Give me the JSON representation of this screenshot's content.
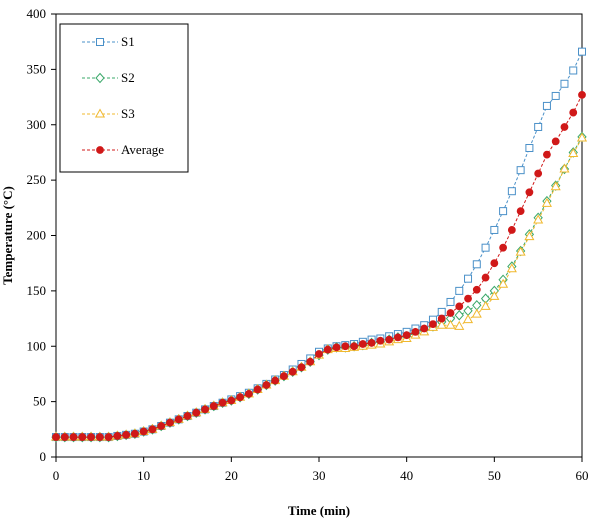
{
  "chart_data": {
    "type": "line",
    "xlabel": "Time (min)",
    "ylabel": "Temperature  (°C)",
    "xlim": [
      0,
      60
    ],
    "ylim": [
      0,
      400
    ],
    "xticks": [
      0,
      10,
      20,
      30,
      40,
      50,
      60
    ],
    "yticks": [
      0,
      50,
      100,
      150,
      200,
      250,
      300,
      350,
      400
    ],
    "grid": false,
    "legend_position": "top-left",
    "series": [
      {
        "name": "S1",
        "color": "#4a90c8",
        "marker": "square",
        "x": [
          0,
          1,
          2,
          3,
          4,
          5,
          6,
          7,
          8,
          9,
          10,
          11,
          12,
          13,
          14,
          15,
          16,
          17,
          18,
          19,
          20,
          21,
          22,
          23,
          24,
          25,
          26,
          27,
          28,
          29,
          30,
          31,
          32,
          33,
          34,
          35,
          36,
          37,
          38,
          39,
          40,
          41,
          42,
          43,
          44,
          45,
          46,
          47,
          48,
          49,
          50,
          51,
          52,
          53,
          54,
          55,
          56,
          57,
          58,
          59,
          60
        ],
        "y": [
          18,
          18,
          18,
          18,
          18,
          18,
          18,
          19,
          20,
          21,
          23,
          25,
          28,
          31,
          34,
          37,
          40,
          43,
          46,
          49,
          52,
          55,
          58,
          62,
          66,
          70,
          74,
          79,
          84,
          89,
          95,
          98,
          100,
          101,
          102,
          104,
          106,
          107,
          109,
          111,
          113,
          116,
          119,
          124,
          131,
          140,
          150,
          161,
          174,
          189,
          205,
          222,
          240,
          259,
          279,
          298,
          317,
          326,
          337,
          349,
          366
        ]
      },
      {
        "name": "S2",
        "color": "#3aa86a",
        "marker": "diamond",
        "x": [
          0,
          1,
          2,
          3,
          4,
          5,
          6,
          7,
          8,
          9,
          10,
          11,
          12,
          13,
          14,
          15,
          16,
          17,
          18,
          19,
          20,
          21,
          22,
          23,
          24,
          25,
          26,
          27,
          28,
          29,
          30,
          31,
          32,
          33,
          34,
          35,
          36,
          37,
          38,
          39,
          40,
          41,
          42,
          43,
          44,
          45,
          46,
          47,
          48,
          49,
          50,
          51,
          52,
          53,
          54,
          55,
          56,
          57,
          58,
          59,
          60
        ],
        "y": [
          18,
          18,
          18,
          18,
          18,
          18,
          18,
          19,
          20,
          21,
          23,
          25,
          28,
          31,
          34,
          37,
          40,
          43,
          46,
          49,
          51,
          54,
          57,
          61,
          65,
          69,
          73,
          77,
          81,
          86,
          92,
          97,
          99,
          99,
          100,
          101,
          103,
          104,
          106,
          108,
          109,
          112,
          115,
          118,
          122,
          125,
          128,
          132,
          137,
          143,
          150,
          160,
          172,
          186,
          201,
          216,
          231,
          245,
          260,
          275,
          289
        ]
      },
      {
        "name": "S3",
        "color": "#f0b82e",
        "marker": "triangle",
        "x": [
          0,
          1,
          2,
          3,
          4,
          5,
          6,
          7,
          8,
          9,
          10,
          11,
          12,
          13,
          14,
          15,
          16,
          17,
          18,
          19,
          20,
          21,
          22,
          23,
          24,
          25,
          26,
          27,
          28,
          29,
          30,
          31,
          32,
          33,
          34,
          35,
          36,
          37,
          38,
          39,
          40,
          41,
          42,
          43,
          44,
          45,
          46,
          47,
          48,
          49,
          50,
          51,
          52,
          53,
          54,
          55,
          56,
          57,
          58,
          59,
          60
        ],
        "y": [
          18,
          18,
          18,
          18,
          18,
          18,
          18,
          19,
          20,
          21,
          23,
          25,
          28,
          31,
          34,
          37,
          40,
          43,
          46,
          49,
          51,
          54,
          57,
          61,
          65,
          69,
          73,
          77,
          81,
          86,
          92,
          97,
          98,
          98,
          99,
          100,
          101,
          102,
          104,
          106,
          107,
          110,
          113,
          117,
          119,
          119,
          118,
          124,
          129,
          136,
          145,
          156,
          170,
          185,
          199,
          214,
          229,
          244,
          260,
          274,
          288
        ]
      },
      {
        "name": "Average",
        "color": "#d01818",
        "marker": "circle",
        "x": [
          0,
          1,
          2,
          3,
          4,
          5,
          6,
          7,
          8,
          9,
          10,
          11,
          12,
          13,
          14,
          15,
          16,
          17,
          18,
          19,
          20,
          21,
          22,
          23,
          24,
          25,
          26,
          27,
          28,
          29,
          30,
          31,
          32,
          33,
          34,
          35,
          36,
          37,
          38,
          39,
          40,
          41,
          42,
          43,
          44,
          45,
          46,
          47,
          48,
          49,
          50,
          51,
          52,
          53,
          54,
          55,
          56,
          57,
          58,
          59,
          60
        ],
        "y": [
          18,
          18,
          18,
          18,
          18,
          18,
          18,
          19,
          20,
          21,
          23,
          25,
          28,
          31,
          34,
          37,
          40,
          43,
          46,
          49,
          51,
          54,
          57,
          61,
          65,
          69,
          73,
          77,
          81,
          86,
          93,
          97,
          99,
          100,
          100,
          102,
          103,
          105,
          106,
          108,
          110,
          113,
          116,
          120,
          125,
          130,
          136,
          143,
          151,
          162,
          175,
          189,
          205,
          222,
          239,
          256,
          273,
          285,
          298,
          311,
          327
        ]
      }
    ]
  }
}
